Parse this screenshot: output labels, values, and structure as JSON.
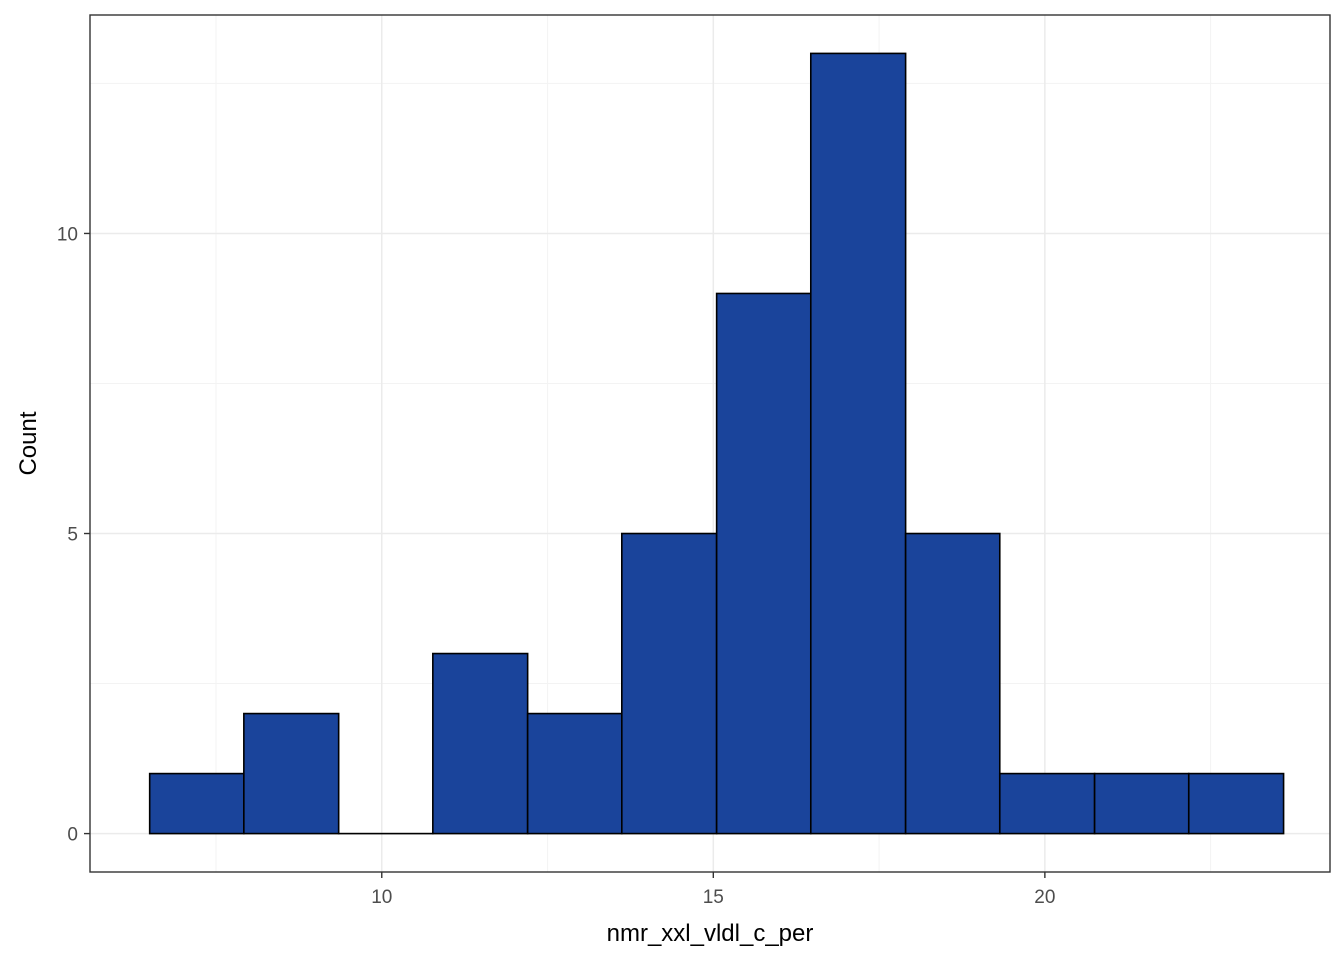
{
  "chart_data": {
    "type": "bar",
    "subtype": "histogram",
    "title": "",
    "xlabel": "nmr_xxl_vldl_c_per",
    "ylabel": "Count",
    "xlim": [
      5.6,
      24.3
    ],
    "ylim": [
      -0.64,
      13.64
    ],
    "x_ticks": [
      10,
      15,
      20
    ],
    "y_ticks": [
      0,
      5,
      10
    ],
    "x_minor_ticks": [
      7.5,
      12.5,
      17.5,
      22.5
    ],
    "y_minor_ticks": [
      2.5,
      7.5,
      12.5
    ],
    "grid": true,
    "legend": "none",
    "bins": [
      {
        "x0": 6.5,
        "x1": 7.92,
        "count": 1
      },
      {
        "x0": 7.92,
        "x1": 9.35,
        "count": 2
      },
      {
        "x0": 9.35,
        "x1": 10.77,
        "count": 0
      },
      {
        "x0": 10.77,
        "x1": 12.2,
        "count": 3
      },
      {
        "x0": 12.2,
        "x1": 13.62,
        "count": 2
      },
      {
        "x0": 13.62,
        "x1": 15.05,
        "count": 5
      },
      {
        "x0": 15.05,
        "x1": 16.47,
        "count": 9
      },
      {
        "x0": 16.47,
        "x1": 17.9,
        "count": 13
      },
      {
        "x0": 17.9,
        "x1": 19.32,
        "count": 5
      },
      {
        "x0": 19.32,
        "x1": 20.75,
        "count": 1
      },
      {
        "x0": 20.75,
        "x1": 22.17,
        "count": 1
      },
      {
        "x0": 22.17,
        "x1": 23.6,
        "count": 1
      }
    ],
    "colors": {
      "bar_fill": "#1a449b",
      "bar_stroke": "#000000",
      "grid_major": "#ebebeb",
      "grid_minor": "#f3f3f3",
      "panel_border": "#333333",
      "tick_label": "#4d4d4d"
    }
  }
}
